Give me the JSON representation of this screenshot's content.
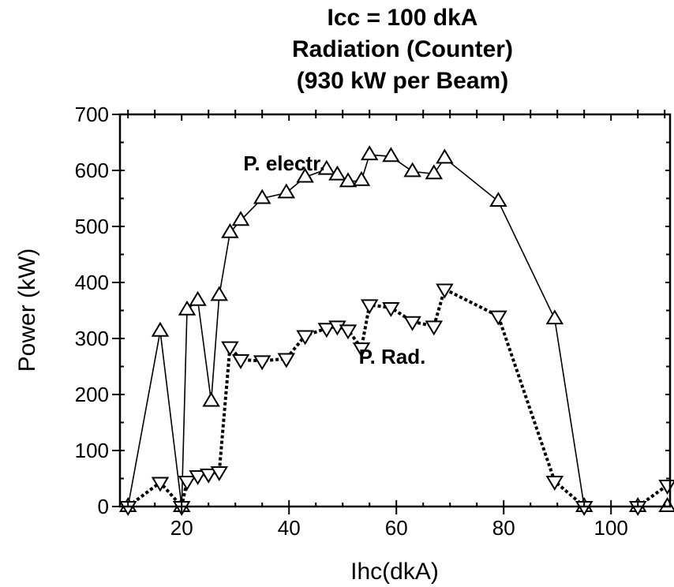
{
  "chart_data": {
    "type": "line",
    "title": [
      "Icc = 100 dkA",
      "Radiation  (Counter)",
      "(930 kW per Beam)"
    ],
    "xlabel": "Ihc(dkA)",
    "ylabel": "Power  (kW)",
    "xlim": [
      8.5,
      111
    ],
    "ylim": [
      0,
      700
    ],
    "xticks": [
      20,
      40,
      60,
      80,
      100
    ],
    "xtick_labels": [
      "20",
      "40",
      "60",
      "80",
      "100"
    ],
    "yticks": [
      0,
      100,
      200,
      300,
      400,
      500,
      600,
      700
    ],
    "ytick_labels": [
      "0",
      "100",
      "200",
      "300",
      "400",
      "500",
      "600",
      "700"
    ],
    "grid": false,
    "annotations": [
      {
        "text": "P.  electr.",
        "x": 31.5,
        "y": 600
      },
      {
        "text": "P.  Rad.",
        "x": 53,
        "y": 255
      }
    ],
    "series": [
      {
        "label": "P.  electr.",
        "marker": "triangle-up",
        "line_style": "solid",
        "segments": [
          [
            [
              10,
              0
            ],
            [
              16,
              313
            ],
            [
              20,
              0
            ],
            [
              21,
              351
            ],
            [
              23,
              368
            ],
            [
              25.5,
              188
            ],
            [
              27,
              377
            ],
            [
              29,
              489
            ],
            [
              31,
              511
            ],
            [
              35,
              550
            ],
            [
              39.5,
              560
            ],
            [
              43,
              588
            ],
            [
              47,
              602
            ],
            [
              49,
              592
            ],
            [
              51,
              580
            ],
            [
              53.5,
              582
            ],
            [
              55,
              628
            ],
            [
              59,
              625
            ],
            [
              63,
              598
            ],
            [
              67,
              594
            ],
            [
              69,
              622
            ],
            [
              79,
              545
            ],
            [
              89.5,
              335
            ],
            [
              95,
              0
            ]
          ],
          [
            [
              105,
              0
            ],
            [
              110.5,
              0
            ]
          ]
        ]
      },
      {
        "label": "P.  Rad.",
        "marker": "triangle-down",
        "line_style": "dotted",
        "segments": [
          [
            [
              10,
              0
            ],
            [
              16,
              43
            ],
            [
              20,
              0
            ],
            [
              21,
              45
            ],
            [
              23,
              55
            ],
            [
              25,
              58
            ],
            [
              27,
              62
            ],
            [
              29,
              285
            ],
            [
              31,
              262
            ],
            [
              35,
              260
            ],
            [
              39.5,
              264
            ],
            [
              43,
              305
            ],
            [
              47,
              318
            ],
            [
              49,
              322
            ],
            [
              51,
              315
            ],
            [
              53.5,
              283
            ],
            [
              55,
              360
            ],
            [
              59,
              355
            ],
            [
              63,
              330
            ],
            [
              67,
              322
            ],
            [
              69,
              388
            ],
            [
              79,
              340
            ],
            [
              89.5,
              45
            ],
            [
              95,
              0
            ]
          ],
          [
            [
              105,
              0
            ],
            [
              110.5,
              38
            ]
          ]
        ]
      }
    ]
  }
}
